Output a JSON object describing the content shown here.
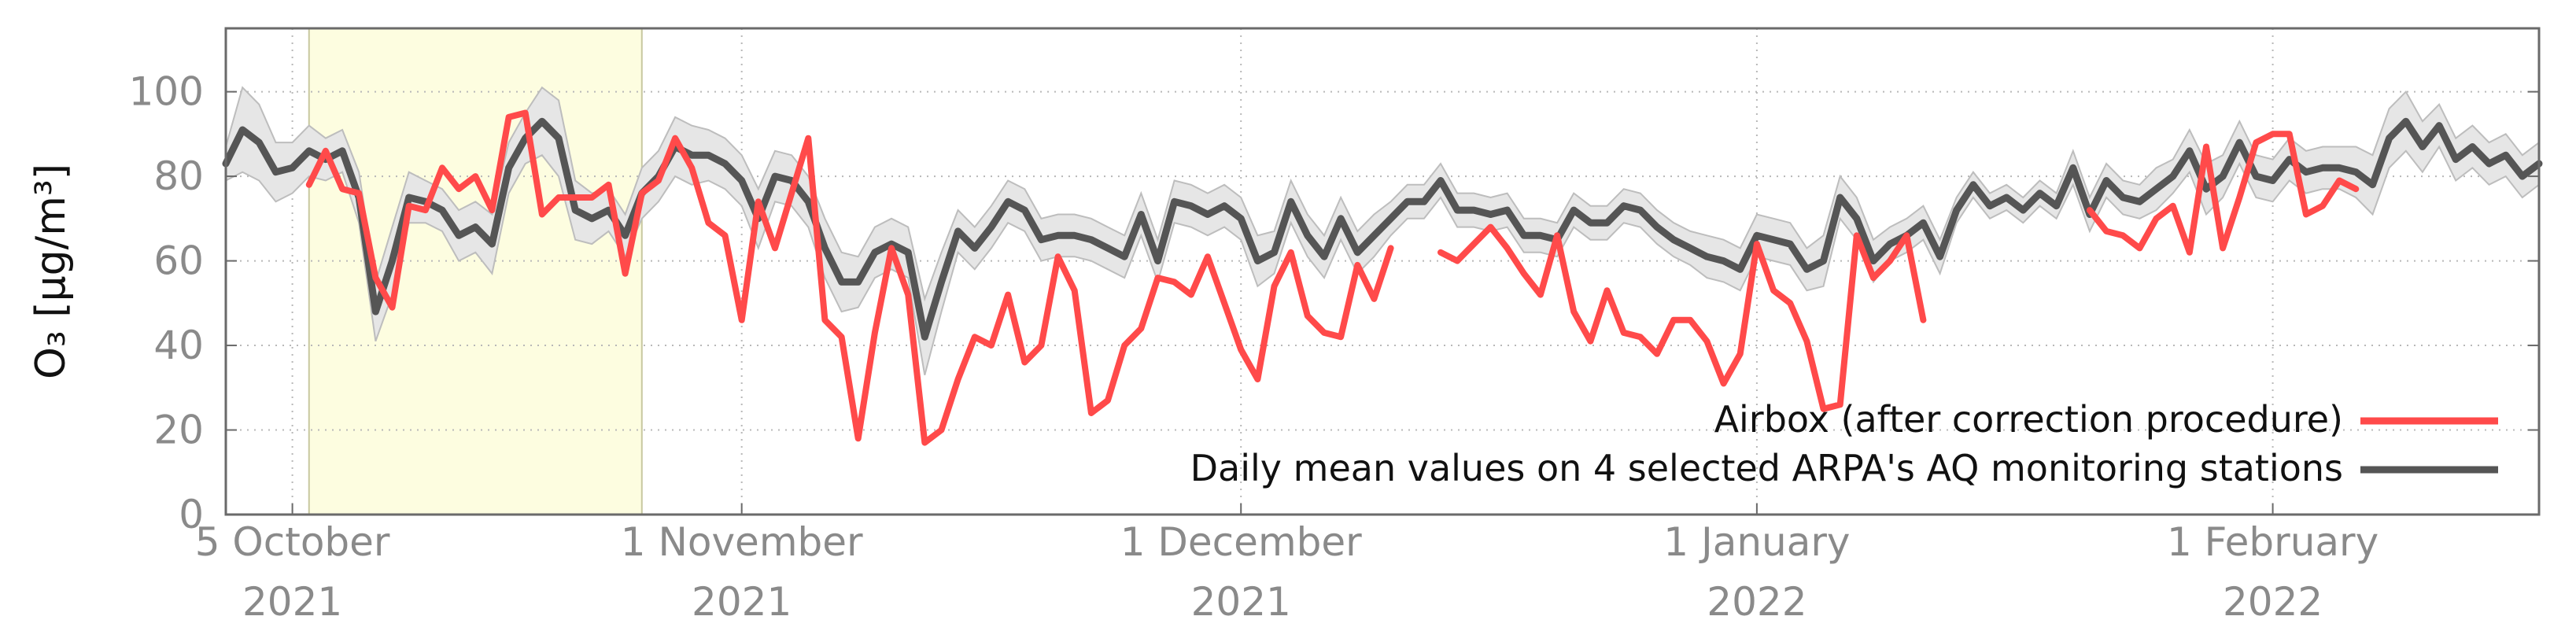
{
  "chart_data": {
    "type": "line",
    "ylabel": "O₃ [µg/m³]",
    "ylim": [
      0,
      115
    ],
    "y_ticks": [
      "0",
      "20",
      "40",
      "60",
      "80",
      "100"
    ],
    "y_tick_values": [
      0,
      20,
      40,
      60,
      80,
      100
    ],
    "x_start": "2021-10-01",
    "x_end": "2022-02-17",
    "x_ticks": [
      {
        "date": "2021-10-05",
        "label": "5 October",
        "year": "2021"
      },
      {
        "date": "2021-11-01",
        "label": "1 November",
        "year": "2021"
      },
      {
        "date": "2021-12-01",
        "label": "1 December",
        "year": "2021"
      },
      {
        "date": "2022-01-01",
        "label": "1 January",
        "year": "2022"
      },
      {
        "date": "2022-02-01",
        "label": "1 February",
        "year": "2022"
      }
    ],
    "grid": "dotted",
    "shaded_period": {
      "start": "2021-10-06",
      "end": "2021-10-26",
      "color": "#fdfde0"
    },
    "legend_position": "bottom-right",
    "colors": {
      "airbox": "#ff4a4a",
      "arpa": "#555555",
      "band": "#e6e6e6"
    },
    "series": [
      {
        "name": "Airbox (after correction procedure)",
        "points": [
          [
            "2021-10-06",
            78
          ],
          [
            "2021-10-07",
            86
          ],
          [
            "2021-10-08",
            77
          ],
          [
            "2021-10-09",
            76
          ],
          [
            "2021-10-10",
            56
          ],
          [
            "2021-10-11",
            49
          ],
          [
            "2021-10-12",
            73
          ],
          [
            "2021-10-13",
            72
          ],
          [
            "2021-10-14",
            82
          ],
          [
            "2021-10-15",
            77
          ],
          [
            "2021-10-16",
            80
          ],
          [
            "2021-10-17",
            72
          ],
          [
            "2021-10-18",
            94
          ],
          [
            "2021-10-19",
            95
          ],
          [
            "2021-10-20",
            71
          ],
          [
            "2021-10-21",
            75
          ],
          [
            "2021-10-22",
            75
          ],
          [
            "2021-10-23",
            75
          ],
          [
            "2021-10-24",
            78
          ],
          [
            "2021-10-25",
            57
          ],
          [
            "2021-10-26",
            76
          ],
          [
            "2021-10-27",
            79
          ],
          [
            "2021-10-28",
            89
          ],
          [
            "2021-10-29",
            82
          ],
          [
            "2021-10-30",
            69
          ],
          [
            "2021-10-31",
            66
          ],
          [
            "2021-11-01",
            46
          ],
          [
            "2021-11-02",
            74
          ],
          [
            "2021-11-03",
            63
          ],
          [
            "2021-11-04",
            76
          ],
          [
            "2021-11-05",
            89
          ],
          [
            "2021-11-06",
            46
          ],
          [
            "2021-11-07",
            42
          ],
          [
            "2021-11-08",
            18
          ],
          [
            "2021-11-09",
            43
          ],
          [
            "2021-11-10",
            63
          ],
          [
            "2021-11-11",
            52
          ],
          [
            "2021-11-12",
            17
          ],
          [
            "2021-11-13",
            20
          ],
          [
            "2021-11-14",
            32
          ],
          [
            "2021-11-15",
            42
          ],
          [
            "2021-11-16",
            40
          ],
          [
            "2021-11-17",
            52
          ],
          [
            "2021-11-18",
            36
          ],
          [
            "2021-11-19",
            40
          ],
          [
            "2021-11-20",
            61
          ],
          [
            "2021-11-21",
            53
          ],
          [
            "2021-11-22",
            24
          ],
          [
            "2021-11-23",
            27
          ],
          [
            "2021-11-24",
            40
          ],
          [
            "2021-11-25",
            44
          ],
          [
            "2021-11-26",
            56
          ],
          [
            "2021-11-27",
            55
          ],
          [
            "2021-11-28",
            52
          ],
          [
            "2021-11-29",
            61
          ],
          [
            "2021-11-30",
            50
          ],
          [
            "2021-12-01",
            39
          ],
          [
            "2021-12-02",
            32
          ],
          [
            "2021-12-03",
            54
          ],
          [
            "2021-12-04",
            62
          ],
          [
            "2021-12-05",
            47
          ],
          [
            "2021-12-06",
            43
          ],
          [
            "2021-12-07",
            42
          ],
          [
            "2021-12-08",
            59
          ],
          [
            "2021-12-09",
            51
          ],
          [
            "2021-12-10",
            63
          ],
          null,
          [
            "2021-12-13",
            62
          ],
          [
            "2021-12-14",
            60
          ],
          [
            "2021-12-15",
            64
          ],
          [
            "2021-12-16",
            68
          ],
          [
            "2021-12-17",
            63
          ],
          [
            "2021-12-18",
            57
          ],
          [
            "2021-12-19",
            52
          ],
          [
            "2021-12-20",
            66
          ],
          [
            "2021-12-21",
            48
          ],
          [
            "2021-12-22",
            41
          ],
          [
            "2021-12-23",
            53
          ],
          [
            "2021-12-24",
            43
          ],
          [
            "2021-12-25",
            42
          ],
          [
            "2021-12-26",
            38
          ],
          [
            "2021-12-27",
            46
          ],
          [
            "2021-12-28",
            46
          ],
          [
            "2021-12-29",
            41
          ],
          [
            "2021-12-30",
            31
          ],
          [
            "2021-12-31",
            38
          ],
          [
            "2022-01-01",
            64
          ],
          [
            "2022-01-02",
            53
          ],
          [
            "2022-01-03",
            50
          ],
          [
            "2022-01-04",
            41
          ],
          [
            "2022-01-05",
            25
          ],
          [
            "2022-01-06",
            26
          ],
          [
            "2022-01-07",
            66
          ],
          [
            "2022-01-08",
            56
          ],
          [
            "2022-01-09",
            60
          ],
          [
            "2022-01-10",
            66
          ],
          [
            "2022-01-11",
            46
          ],
          null,
          [
            "2022-01-21",
            72
          ],
          [
            "2022-01-22",
            67
          ],
          [
            "2022-01-23",
            66
          ],
          [
            "2022-01-24",
            63
          ],
          [
            "2022-01-25",
            70
          ],
          [
            "2022-01-26",
            73
          ],
          [
            "2022-01-27",
            62
          ],
          [
            "2022-01-28",
            87
          ],
          [
            "2022-01-29",
            63
          ],
          [
            "2022-01-30",
            75
          ],
          [
            "2022-01-31",
            88
          ],
          [
            "2022-02-01",
            90
          ],
          [
            "2022-02-02",
            90
          ],
          [
            "2022-02-03",
            71
          ],
          [
            "2022-02-04",
            73
          ],
          [
            "2022-02-05",
            79
          ],
          [
            "2022-02-06",
            77
          ]
        ]
      },
      {
        "name": "Daily mean values on 4 selected ARPA's AQ monitoring stations",
        "points": [
          [
            "2021-10-01",
            83
          ],
          [
            "2021-10-02",
            91
          ],
          [
            "2021-10-03",
            88
          ],
          [
            "2021-10-04",
            81
          ],
          [
            "2021-10-05",
            82
          ],
          [
            "2021-10-06",
            86
          ],
          [
            "2021-10-07",
            84
          ],
          [
            "2021-10-08",
            86
          ],
          [
            "2021-10-09",
            75
          ],
          [
            "2021-10-10",
            48
          ],
          [
            "2021-10-11",
            60
          ],
          [
            "2021-10-12",
            75
          ],
          [
            "2021-10-13",
            74
          ],
          [
            "2021-10-14",
            72
          ],
          [
            "2021-10-15",
            66
          ],
          [
            "2021-10-16",
            68
          ],
          [
            "2021-10-17",
            64
          ],
          [
            "2021-10-18",
            82
          ],
          [
            "2021-10-19",
            89
          ],
          [
            "2021-10-20",
            93
          ],
          [
            "2021-10-21",
            89
          ],
          [
            "2021-10-22",
            72
          ],
          [
            "2021-10-23",
            70
          ],
          [
            "2021-10-24",
            72
          ],
          [
            "2021-10-25",
            66
          ],
          [
            "2021-10-26",
            76
          ],
          [
            "2021-10-27",
            80
          ],
          [
            "2021-10-28",
            87
          ],
          [
            "2021-10-29",
            85
          ],
          [
            "2021-10-30",
            85
          ],
          [
            "2021-10-31",
            83
          ],
          [
            "2021-11-01",
            79
          ],
          [
            "2021-11-02",
            70
          ],
          [
            "2021-11-03",
            80
          ],
          [
            "2021-11-04",
            79
          ],
          [
            "2021-11-05",
            74
          ],
          [
            "2021-11-06",
            63
          ],
          [
            "2021-11-07",
            55
          ],
          [
            "2021-11-08",
            55
          ],
          [
            "2021-11-09",
            62
          ],
          [
            "2021-11-10",
            64
          ],
          [
            "2021-11-11",
            62
          ],
          [
            "2021-11-12",
            42
          ],
          [
            "2021-11-13",
            55
          ],
          [
            "2021-11-14",
            67
          ],
          [
            "2021-11-15",
            63
          ],
          [
            "2021-11-16",
            68
          ],
          [
            "2021-11-17",
            74
          ],
          [
            "2021-11-18",
            72
          ],
          [
            "2021-11-19",
            65
          ],
          [
            "2021-11-20",
            66
          ],
          [
            "2021-11-21",
            66
          ],
          [
            "2021-11-22",
            65
          ],
          [
            "2021-11-23",
            63
          ],
          [
            "2021-11-24",
            61
          ],
          [
            "2021-11-25",
            71
          ],
          [
            "2021-11-26",
            60
          ],
          [
            "2021-11-27",
            74
          ],
          [
            "2021-11-28",
            73
          ],
          [
            "2021-11-29",
            71
          ],
          [
            "2021-11-30",
            73
          ],
          [
            "2021-12-01",
            70
          ],
          [
            "2021-12-02",
            60
          ],
          [
            "2021-12-03",
            62
          ],
          [
            "2021-12-04",
            74
          ],
          [
            "2021-12-05",
            66
          ],
          [
            "2021-12-06",
            61
          ],
          [
            "2021-12-07",
            70
          ],
          [
            "2021-12-08",
            62
          ],
          [
            "2021-12-09",
            66
          ],
          [
            "2021-12-10",
            70
          ],
          [
            "2021-12-11",
            74
          ],
          [
            "2021-12-12",
            74
          ],
          [
            "2021-12-13",
            79
          ],
          [
            "2021-12-14",
            72
          ],
          [
            "2021-12-15",
            72
          ],
          [
            "2021-12-16",
            71
          ],
          [
            "2021-12-17",
            72
          ],
          [
            "2021-12-18",
            66
          ],
          [
            "2021-12-19",
            66
          ],
          [
            "2021-12-20",
            65
          ],
          [
            "2021-12-21",
            72
          ],
          [
            "2021-12-22",
            69
          ],
          [
            "2021-12-23",
            69
          ],
          [
            "2021-12-24",
            73
          ],
          [
            "2021-12-25",
            72
          ],
          [
            "2021-12-26",
            68
          ],
          [
            "2021-12-27",
            65
          ],
          [
            "2021-12-28",
            63
          ],
          [
            "2021-12-29",
            61
          ],
          [
            "2021-12-30",
            60
          ],
          [
            "2021-12-31",
            58
          ],
          [
            "2022-01-01",
            66
          ],
          [
            "2022-01-02",
            65
          ],
          [
            "2022-01-03",
            64
          ],
          [
            "2022-01-04",
            58
          ],
          [
            "2022-01-05",
            60
          ],
          [
            "2022-01-06",
            75
          ],
          [
            "2022-01-07",
            70
          ],
          [
            "2022-01-08",
            60
          ],
          [
            "2022-01-09",
            64
          ],
          [
            "2022-01-10",
            66
          ],
          [
            "2022-01-11",
            69
          ],
          [
            "2022-01-12",
            61
          ],
          [
            "2022-01-13",
            72
          ],
          [
            "2022-01-14",
            78
          ],
          [
            "2022-01-15",
            73
          ],
          [
            "2022-01-16",
            75
          ],
          [
            "2022-01-17",
            72
          ],
          [
            "2022-01-18",
            76
          ],
          [
            "2022-01-19",
            73
          ],
          [
            "2022-01-20",
            82
          ],
          [
            "2022-01-21",
            71
          ],
          [
            "2022-01-22",
            79
          ],
          [
            "2022-01-23",
            75
          ],
          [
            "2022-01-24",
            74
          ],
          [
            "2022-01-25",
            77
          ],
          [
            "2022-01-26",
            80
          ],
          [
            "2022-01-27",
            86
          ],
          [
            "2022-01-28",
            77
          ],
          [
            "2022-01-29",
            80
          ],
          [
            "2022-01-30",
            88
          ],
          [
            "2022-01-31",
            80
          ],
          [
            "2022-02-01",
            79
          ],
          [
            "2022-02-02",
            84
          ],
          [
            "2022-02-03",
            81
          ],
          [
            "2022-02-04",
            82
          ],
          [
            "2022-02-05",
            82
          ],
          [
            "2022-02-06",
            81
          ],
          [
            "2022-02-07",
            78
          ],
          [
            "2022-02-08",
            89
          ],
          [
            "2022-02-09",
            93
          ],
          [
            "2022-02-10",
            87
          ],
          [
            "2022-02-11",
            92
          ],
          [
            "2022-02-12",
            84
          ],
          [
            "2022-02-13",
            87
          ],
          [
            "2022-02-14",
            83
          ],
          [
            "2022-02-15",
            85
          ],
          [
            "2022-02-16",
            80
          ],
          [
            "2022-02-17",
            83
          ]
        ],
        "band_halfwidth": [
          4,
          10,
          9,
          7,
          6,
          6,
          5,
          5,
          6,
          7,
          8,
          6,
          5,
          5,
          6,
          6,
          7,
          6,
          6,
          8,
          9,
          7,
          6,
          5,
          5,
          6,
          6,
          7,
          7,
          6,
          6,
          6,
          7,
          6,
          6,
          6,
          7,
          7,
          6,
          6,
          6,
          6,
          9,
          7,
          5,
          5,
          5,
          5,
          5,
          5,
          5,
          5,
          5,
          5,
          5,
          5,
          5,
          5,
          5,
          5,
          5,
          5,
          6,
          5,
          5,
          5,
          5,
          5,
          5,
          5,
          4,
          4,
          4,
          4,
          4,
          4,
          4,
          4,
          4,
          4,
          4,
          4,
          4,
          4,
          4,
          4,
          4,
          4,
          4,
          5,
          5,
          5,
          5,
          5,
          5,
          5,
          6,
          5,
          5,
          5,
          4,
          4,
          4,
          4,
          3,
          3,
          3,
          3,
          3,
          3,
          3,
          4,
          4,
          4,
          4,
          4,
          5,
          4,
          5,
          6,
          5,
          5,
          5,
          5,
          5,
          5,
          5,
          5,
          6,
          7,
          7,
          7,
          6,
          5,
          5,
          5,
          5,
          5,
          5,
          5
        ]
      }
    ]
  }
}
